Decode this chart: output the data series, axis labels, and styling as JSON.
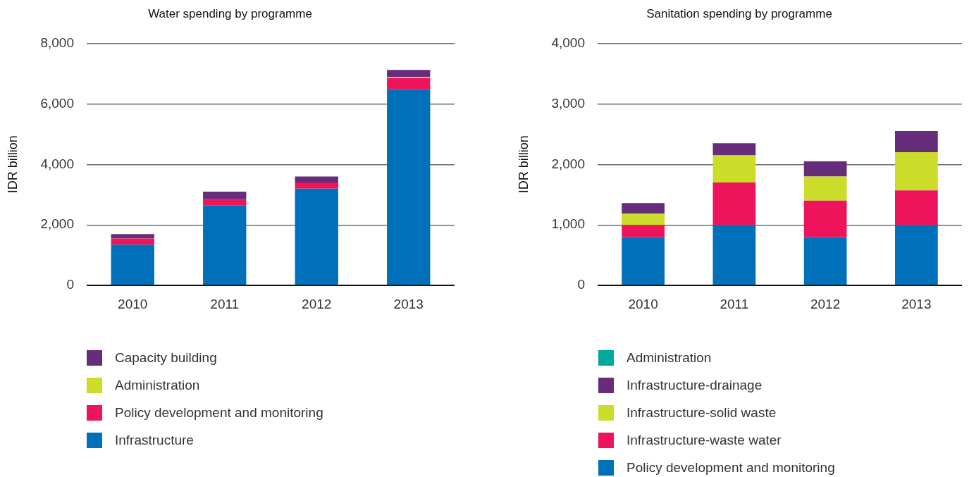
{
  "chart_data": [
    {
      "type": "bar",
      "title": "Water spending by programme",
      "ylabel": "IDR billion",
      "categories": [
        "2010",
        "2011",
        "2012",
        "2013"
      ],
      "stacked": true,
      "ylim": [
        0,
        8000
      ],
      "yticks": [
        0,
        {
          "value": 2000,
          "label": "2,000"
        },
        {
          "value": 4000,
          "label": "4,000"
        },
        {
          "value": 6000,
          "label": "6,000"
        },
        {
          "value": 8000,
          "label": "8,000"
        }
      ],
      "grid": "y",
      "legend": "bottom",
      "series": [
        {
          "name": "Infrastructure",
          "color": "#0070bb",
          "values": [
            1350,
            2650,
            3200,
            6480
          ]
        },
        {
          "name": "Policy development and monitoring",
          "color": "#ee145b",
          "values": [
            200,
            200,
            200,
            370
          ]
        },
        {
          "name": "Administration",
          "color": "#cbdd29",
          "values": [
            0,
            0,
            0,
            30
          ]
        },
        {
          "name": "Capacity building",
          "color": "#662e7a",
          "values": [
            150,
            250,
            200,
            240
          ]
        }
      ]
    },
    {
      "type": "bar",
      "title": "Sanitation spending by programme",
      "ylabel": "IDR billion",
      "categories": [
        "2010",
        "2011",
        "2012",
        "2013"
      ],
      "stacked": true,
      "ylim": [
        0,
        4000
      ],
      "yticks": [
        0,
        {
          "value": 1000,
          "label": "1,000"
        },
        {
          "value": 2000,
          "label": "2,000"
        },
        {
          "value": 3000,
          "label": "3,000"
        },
        {
          "value": 4000,
          "label": "4,000"
        }
      ],
      "grid": "y",
      "legend": "bottom",
      "series": [
        {
          "name": "Policy development and monitoring",
          "color": "#0070bb",
          "values": [
            800,
            1000,
            800,
            1000
          ]
        },
        {
          "name": "Infrastructure-waste water",
          "color": "#ee145b",
          "values": [
            200,
            700,
            600,
            570
          ]
        },
        {
          "name": "Infrastructure-solid waste",
          "color": "#cbdd29",
          "values": [
            190,
            450,
            400,
            630
          ]
        },
        {
          "name": "Infrastructure-drainage",
          "color": "#662e7a",
          "values": [
            170,
            200,
            250,
            350
          ]
        },
        {
          "name": "Administration",
          "color": "#00a99d",
          "values": [
            0,
            0,
            0,
            0
          ]
        }
      ]
    }
  ]
}
